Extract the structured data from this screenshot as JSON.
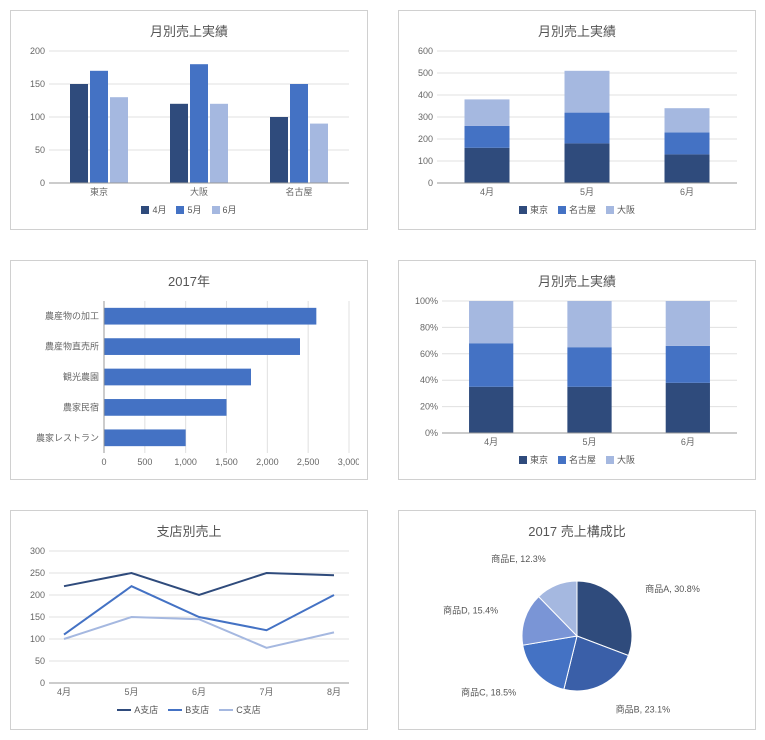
{
  "colors": {
    "s1": "#2f4b7c",
    "s2": "#4472c4",
    "s3": "#a5b8e0",
    "grid": "#e0e0e0",
    "border": "#d0d0d0",
    "text": "#666666"
  },
  "chart1": {
    "type": "bar",
    "title": "月別売上実績",
    "categories": [
      "東京",
      "大阪",
      "名古屋"
    ],
    "series": [
      {
        "name": "4月",
        "color": "#2f4b7c",
        "values": [
          150,
          120,
          100
        ]
      },
      {
        "name": "5月",
        "color": "#4472c4",
        "values": [
          170,
          180,
          150
        ]
      },
      {
        "name": "6月",
        "color": "#a5b8e0",
        "values": [
          130,
          120,
          90
        ]
      }
    ],
    "ylim": [
      0,
      200
    ],
    "ytick_step": 50,
    "legend": [
      "4月",
      "5月",
      "6月"
    ]
  },
  "chart2": {
    "type": "stacked-bar",
    "title": "月別売上実績",
    "categories": [
      "4月",
      "5月",
      "6月"
    ],
    "series": [
      {
        "name": "東京",
        "color": "#2f4b7c",
        "values": [
          160,
          180,
          130
        ]
      },
      {
        "name": "名古屋",
        "color": "#4472c4",
        "values": [
          100,
          140,
          100
        ]
      },
      {
        "name": "大阪",
        "color": "#a5b8e0",
        "values": [
          120,
          190,
          110
        ]
      }
    ],
    "ylim": [
      0,
      600
    ],
    "ytick_step": 100,
    "legend": [
      "東京",
      "名古屋",
      "大阪"
    ]
  },
  "chart3": {
    "type": "hbar",
    "title": "2017年",
    "categories": [
      "農産物の加工",
      "農産物直売所",
      "観光農園",
      "農家民宿",
      "農家レストラン"
    ],
    "values": [
      2600,
      2400,
      1800,
      1500,
      1000
    ],
    "color": "#4472c4",
    "xlim": [
      0,
      3000
    ],
    "xtick_step": 500
  },
  "chart4": {
    "type": "stacked-bar-100",
    "title": "月別売上実績",
    "categories": [
      "4月",
      "5月",
      "6月"
    ],
    "series": [
      {
        "name": "東京",
        "color": "#2f4b7c",
        "values": [
          35,
          35,
          38
        ]
      },
      {
        "name": "名古屋",
        "color": "#4472c4",
        "values": [
          33,
          30,
          28
        ]
      },
      {
        "name": "大阪",
        "color": "#a5b8e0",
        "values": [
          32,
          35,
          34
        ]
      }
    ],
    "ylim": [
      0,
      100
    ],
    "ytick_step": 20,
    "legend": [
      "東京",
      "名古屋",
      "大阪"
    ]
  },
  "chart5": {
    "type": "line",
    "title": "支店別売上",
    "categories": [
      "4月",
      "5月",
      "6月",
      "7月",
      "8月"
    ],
    "series": [
      {
        "name": "A支店",
        "color": "#2f4b7c",
        "values": [
          220,
          250,
          200,
          250,
          245
        ]
      },
      {
        "name": "B支店",
        "color": "#4472c4",
        "values": [
          110,
          220,
          150,
          120,
          200
        ]
      },
      {
        "name": "C支店",
        "color": "#a5b8e0",
        "values": [
          100,
          150,
          145,
          80,
          115
        ]
      }
    ],
    "ylim": [
      0,
      300
    ],
    "ytick_step": 50,
    "legend": [
      "A支店",
      "B支店",
      "C支店"
    ]
  },
  "chart6": {
    "type": "pie",
    "title": "2017 売上構成比",
    "slices": [
      {
        "name": "商品A",
        "value": 30.8,
        "color": "#2f4b7c",
        "label": "商品A, 30.8%"
      },
      {
        "name": "商品B",
        "value": 23.1,
        "color": "#3a5fa8",
        "label": "商品B, 23.1%"
      },
      {
        "name": "商品C",
        "value": 18.5,
        "color": "#4472c4",
        "label": "商品C, 18.5%"
      },
      {
        "name": "商品D",
        "value": 15.4,
        "color": "#7a95d6",
        "label": "商品D, 15.4%"
      },
      {
        "name": "商品E",
        "value": 12.3,
        "color": "#a5b8e0",
        "label": "商品E, 12.3%"
      }
    ]
  }
}
